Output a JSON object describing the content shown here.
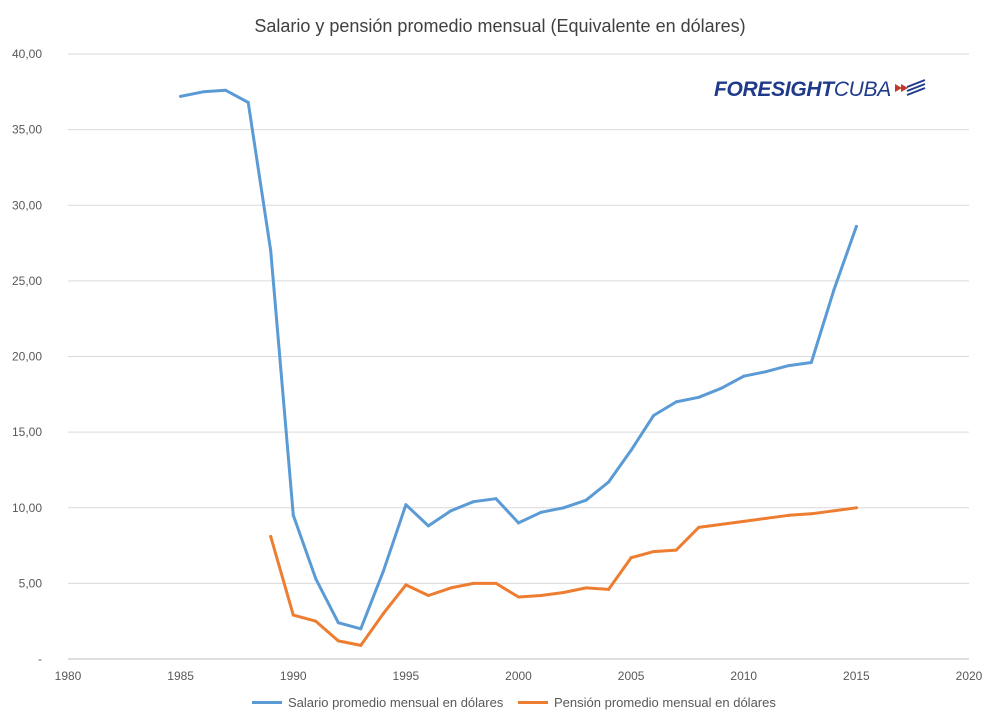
{
  "logo": {
    "part1": "FORESIGHT",
    "part2": "CUBA"
  },
  "chart_data": {
    "type": "line",
    "title": "Salario y pensión promedio  mensual (Equivalente en dólares)",
    "xlabel": "",
    "ylabel": "",
    "xlim": [
      1980,
      2020
    ],
    "ylim": [
      0,
      40
    ],
    "x_ticks": [
      1980,
      1985,
      1990,
      1995,
      2000,
      2005,
      2010,
      2015,
      2020
    ],
    "x_tick_labels": [
      "1980",
      "1985",
      "1990",
      "1995",
      "2000",
      "2005",
      "2010",
      "2015",
      "2020"
    ],
    "y_ticks": [
      0,
      5,
      10,
      15,
      20,
      25,
      30,
      35,
      40
    ],
    "y_tick_labels": [
      "-",
      "5,00",
      "10,00",
      "15,00",
      "20,00",
      "25,00",
      "30,00",
      "35,00",
      "40,00"
    ],
    "grid": "horizontal",
    "legend_position": "bottom",
    "series": [
      {
        "name": "Salario promedio mensual en dólares",
        "color": "#5b9bd5",
        "x": [
          1985,
          1986,
          1987,
          1988,
          1989,
          1990,
          1991,
          1992,
          1993,
          1994,
          1995,
          1996,
          1997,
          1998,
          1999,
          2000,
          2001,
          2002,
          2003,
          2004,
          2005,
          2006,
          2007,
          2008,
          2009,
          2010,
          2011,
          2012,
          2013,
          2014,
          2015
        ],
        "values": [
          37.2,
          37.5,
          37.6,
          36.8,
          27.0,
          9.5,
          5.3,
          2.4,
          2.0,
          5.8,
          10.2,
          8.8,
          9.8,
          10.4,
          10.6,
          9.0,
          9.7,
          10.0,
          10.5,
          11.7,
          13.8,
          16.1,
          17.0,
          17.3,
          17.9,
          18.7,
          19.0,
          19.4,
          19.6,
          24.4,
          28.6
        ]
      },
      {
        "name": "Pensión promedio mensual en dólares",
        "color": "#ed7d31",
        "x": [
          1989,
          1990,
          1991,
          1992,
          1993,
          1994,
          1995,
          1996,
          1997,
          1998,
          1999,
          2000,
          2001,
          2002,
          2003,
          2004,
          2005,
          2006,
          2007,
          2008,
          2009,
          2010,
          2011,
          2012,
          2013,
          2014,
          2015
        ],
        "values": [
          8.1,
          2.9,
          2.5,
          1.2,
          0.9,
          3.0,
          4.9,
          4.2,
          4.7,
          5.0,
          5.0,
          4.1,
          4.2,
          4.4,
          4.7,
          4.6,
          6.7,
          7.1,
          7.2,
          8.7,
          8.9,
          9.1,
          9.3,
          9.5,
          9.6,
          9.8,
          10.0
        ]
      }
    ]
  }
}
